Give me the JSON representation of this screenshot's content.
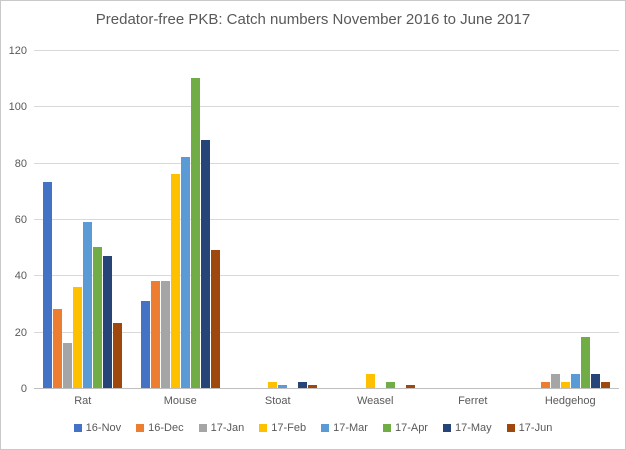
{
  "chart_data": {
    "type": "bar",
    "title": "Predator-free PKB: Catch numbers November 2016 to June 2017",
    "categories": [
      "Rat",
      "Mouse",
      "Stoat",
      "Weasel",
      "Ferret",
      "Hedgehog"
    ],
    "series": [
      {
        "name": "16-Nov",
        "color": "#4472c4",
        "values": [
          73,
          31,
          0,
          0,
          0,
          0
        ]
      },
      {
        "name": "16-Dec",
        "color": "#ed7d31",
        "values": [
          28,
          38,
          0,
          0,
          0,
          2
        ]
      },
      {
        "name": "17-Jan",
        "color": "#a5a5a5",
        "values": [
          16,
          38,
          0,
          0,
          0,
          5
        ]
      },
      {
        "name": "17-Feb",
        "color": "#ffc000",
        "values": [
          36,
          76,
          2,
          5,
          0,
          2
        ]
      },
      {
        "name": "17-Mar",
        "color": "#5b9bd5",
        "values": [
          59,
          82,
          1,
          0,
          0,
          5
        ]
      },
      {
        "name": "17-Apr",
        "color": "#70ad47",
        "values": [
          50,
          110,
          0,
          2,
          0,
          18
        ]
      },
      {
        "name": "17-May",
        "color": "#264478",
        "values": [
          47,
          88,
          2,
          0,
          0,
          5
        ]
      },
      {
        "name": "17-Jun",
        "color": "#9e480e",
        "values": [
          23,
          49,
          1,
          1,
          0,
          2
        ]
      }
    ],
    "xlabel": "",
    "ylabel": "",
    "ylim": [
      0,
      120
    ],
    "yticks": [
      0,
      20,
      40,
      60,
      80,
      100,
      120
    ],
    "grid": true,
    "legend_position": "bottom",
    "colors": {
      "title_text": "#595959",
      "axis_text": "#595959",
      "gridline": "#d9d9d9",
      "axis_line": "#bfbfbf",
      "background": "#ffffff",
      "border": "#c9c9c9"
    }
  }
}
